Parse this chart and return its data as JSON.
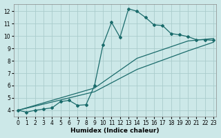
{
  "xlabel": "Humidex (Indice chaleur)",
  "bg_color": "#cce8e8",
  "grid_color": "#aacccc",
  "line_color": "#1a6b6b",
  "xlim": [
    -0.5,
    23.3
  ],
  "ylim": [
    3.5,
    12.6
  ],
  "xticks": [
    0,
    1,
    2,
    3,
    4,
    5,
    6,
    7,
    8,
    9,
    10,
    11,
    12,
    13,
    14,
    15,
    16,
    17,
    18,
    19,
    20,
    21,
    22,
    23
  ],
  "yticks": [
    4,
    5,
    6,
    7,
    8,
    9,
    10,
    11,
    12
  ],
  "line1_x": [
    0,
    1,
    2,
    3,
    4,
    5,
    6,
    7,
    8,
    9,
    10,
    11,
    12,
    13,
    14,
    15,
    16,
    17,
    18,
    19,
    20,
    21,
    22,
    23
  ],
  "line1_y": [
    4.0,
    3.85,
    4.0,
    4.1,
    4.2,
    4.7,
    4.8,
    4.4,
    4.45,
    6.0,
    9.3,
    11.1,
    9.9,
    12.2,
    12.0,
    11.5,
    10.9,
    10.85,
    10.2,
    10.1,
    9.95,
    9.7,
    9.7,
    9.65
  ],
  "line2_x": [
    0,
    9,
    14,
    20,
    23
  ],
  "line2_y": [
    4.0,
    5.5,
    7.3,
    8.8,
    9.5
  ],
  "line3_x": [
    0,
    9,
    14,
    20,
    23
  ],
  "line3_y": [
    4.0,
    5.8,
    8.2,
    9.6,
    9.8
  ]
}
